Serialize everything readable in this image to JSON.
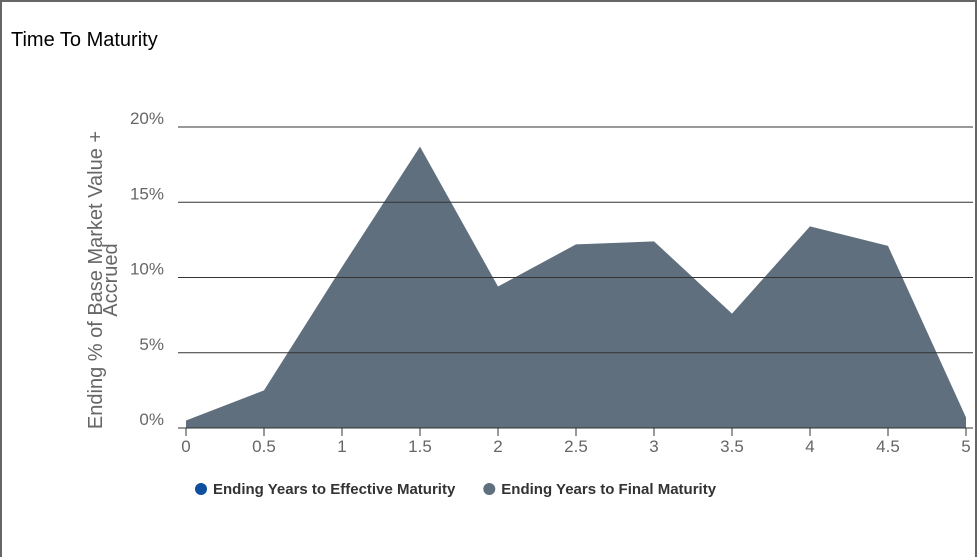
{
  "title": "Time To Maturity",
  "chart_data": {
    "type": "area",
    "y_label": "Ending % of Base Market Value + Accrued",
    "x": [
      0,
      0.5,
      1,
      1.5,
      2,
      2.5,
      3,
      3.5,
      4,
      4.5,
      5
    ],
    "series": [
      {
        "name": "Ending Years to Effective Maturity",
        "color": "#0d4f9e",
        "values": [
          null,
          null,
          null,
          null,
          null,
          null,
          null,
          null,
          null,
          null,
          null
        ]
      },
      {
        "name": "Ending Years to Final Maturity",
        "color": "#5f6f7e",
        "values": [
          0.5,
          2.5,
          10.7,
          18.7,
          9.4,
          12.2,
          12.4,
          7.6,
          13.4,
          12.1,
          0.7
        ]
      }
    ],
    "xlim": [
      0,
      5
    ],
    "xticks": [
      0,
      0.5,
      1,
      1.5,
      2,
      2.5,
      3,
      3.5,
      4,
      4.5,
      5
    ],
    "ylim": [
      0,
      20
    ],
    "yticks": [
      {
        "value": 0,
        "label": "0%"
      },
      {
        "value": 5,
        "label": "5%"
      },
      {
        "value": 10,
        "label": "10%"
      },
      {
        "value": 15,
        "label": "15%"
      },
      {
        "value": 20,
        "label": "20%"
      }
    ],
    "grid": true
  }
}
